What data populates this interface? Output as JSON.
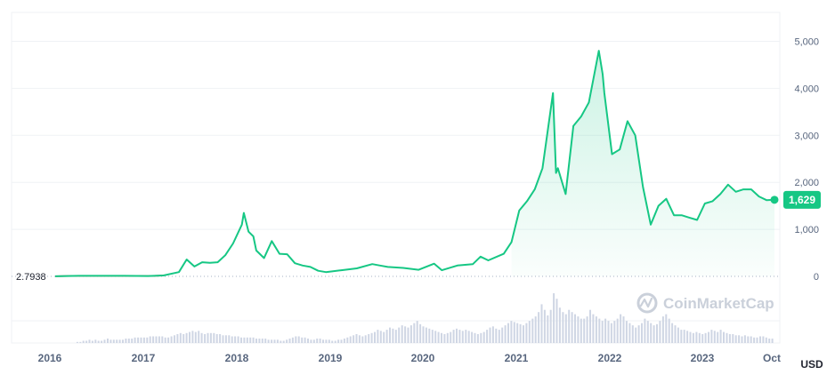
{
  "chart_data": {
    "type": "line",
    "title": "",
    "xlabel": "",
    "ylabel": "",
    "currency_unit": "USD",
    "x_tick_labels": [
      "2016",
      "2017",
      "2018",
      "2019",
      "2020",
      "2021",
      "2022",
      "2023",
      "Oct"
    ],
    "y_tick_labels": [
      "5,000",
      "4,000",
      "3,000",
      "2,000",
      "1,000",
      "0"
    ],
    "y_ticks": [
      5000,
      4000,
      3000,
      2000,
      1000,
      0
    ],
    "ylim": [
      0,
      5500
    ],
    "start_value_label": "2.7938",
    "current_value_label": "1,629",
    "watermark": "CoinMarketCap",
    "grid": true,
    "colors": {
      "line_up": "#16c784",
      "line_down": "#ea3943",
      "volume": "#cfd6e4",
      "axis_text": "#58667e"
    },
    "series": [
      {
        "x": [
          "2016-01",
          "2016-04",
          "2016-07",
          "2016-10",
          "2017-01",
          "2017-03",
          "2017-05",
          "2017-06",
          "2017-07",
          "2017-08",
          "2017-09",
          "2017-10",
          "2017-11",
          "2017-12",
          "2018-01-05",
          "2018-01-13",
          "2018-02",
          "2018-02-20",
          "2018-03",
          "2018-04",
          "2018-05",
          "2018-06",
          "2018-07",
          "2018-08",
          "2018-09",
          "2018-10",
          "2018-11",
          "2018-12",
          "2019-02",
          "2019-04",
          "2019-06",
          "2019-07",
          "2019-08",
          "2019-10",
          "2019-12",
          "2020-02",
          "2020-03",
          "2020-05",
          "2020-07",
          "2020-08",
          "2020-09",
          "2020-11",
          "2020-12",
          "2021-01",
          "2021-02",
          "2021-03",
          "2021-04",
          "2021-05-12",
          "2021-05-24",
          "2021-06",
          "2021-07",
          "2021-08",
          "2021-09",
          "2021-10",
          "2021-11-10",
          "2021-11-25",
          "2021-12",
          "2022-01",
          "2022-02",
          "2022-03",
          "2022-04",
          "2022-05",
          "2022-06",
          "2022-07",
          "2022-08",
          "2022-09",
          "2022-10",
          "2022-11",
          "2022-12",
          "2023-01",
          "2023-02",
          "2023-03",
          "2023-04",
          "2023-05",
          "2023-06",
          "2023-07",
          "2023-08",
          "2023-09",
          "2023-10"
        ],
        "values": [
          1,
          11,
          12,
          12,
          8,
          18,
          90,
          360,
          210,
          300,
          290,
          300,
          450,
          700,
          1100,
          1350,
          950,
          850,
          550,
          390,
          750,
          480,
          470,
          280,
          230,
          200,
          120,
          90,
          130,
          170,
          260,
          230,
          200,
          180,
          140,
          270,
          130,
          230,
          260,
          420,
          340,
          480,
          730,
          1400,
          1600,
          1850,
          2300,
          3900,
          2200,
          2300,
          1750,
          3200,
          3400,
          3700,
          4800,
          4300,
          3900,
          2600,
          2700,
          3300,
          3000,
          1900,
          1100,
          1500,
          1650,
          1300,
          1300,
          1250,
          1200,
          1550,
          1600,
          1750,
          1950,
          1800,
          1850,
          1850,
          1700,
          1620,
          1629
        ]
      }
    ],
    "volume": {
      "x_start": "2016-01",
      "x_end": "2023-10",
      "values": [
        0,
        0,
        0,
        0,
        0,
        0,
        0,
        1,
        1,
        2,
        2,
        3,
        2,
        3,
        2,
        2,
        3,
        4,
        3,
        3,
        3,
        3,
        3,
        4,
        4,
        4,
        5,
        5,
        5,
        5,
        5,
        6,
        6,
        6,
        6,
        6,
        5,
        5,
        6,
        7,
        8,
        9,
        8,
        9,
        10,
        11,
        10,
        11,
        9,
        8,
        9,
        9,
        9,
        8,
        8,
        7,
        7,
        7,
        6,
        6,
        6,
        5,
        5,
        5,
        5,
        5,
        4,
        4,
        4,
        4,
        3,
        3,
        3,
        3,
        2,
        2,
        3,
        4,
        5,
        6,
        6,
        5,
        5,
        4,
        3,
        3,
        4,
        4,
        3,
        3,
        3,
        2,
        2,
        3,
        3,
        4,
        5,
        6,
        7,
        8,
        7,
        6,
        7,
        8,
        9,
        10,
        12,
        11,
        10,
        12,
        14,
        13,
        12,
        14,
        16,
        15,
        14,
        16,
        18,
        20,
        17,
        15,
        14,
        13,
        12,
        11,
        10,
        9,
        8,
        9,
        10,
        12,
        13,
        12,
        11,
        12,
        11,
        10,
        9,
        8,
        9,
        10,
        12,
        14,
        15,
        13,
        12,
        14,
        16,
        18,
        20,
        19,
        18,
        17,
        16,
        18,
        20,
        22,
        24,
        28,
        35,
        30,
        25,
        30,
        45,
        40,
        32,
        28,
        26,
        30,
        28,
        26,
        24,
        22,
        22,
        24,
        30,
        26,
        24,
        22,
        20,
        22,
        20,
        18,
        20,
        22,
        26,
        24,
        20,
        18,
        16,
        14,
        16,
        18,
        22,
        20,
        18,
        16,
        17,
        20,
        24,
        26,
        22,
        18,
        16,
        14,
        12,
        12,
        11,
        10,
        9,
        10,
        9,
        8,
        9,
        10,
        12,
        11,
        10,
        12,
        10,
        9,
        8,
        8,
        7,
        7,
        6,
        7,
        6,
        6,
        5,
        5,
        6,
        6,
        5,
        4,
        4
      ]
    }
  }
}
